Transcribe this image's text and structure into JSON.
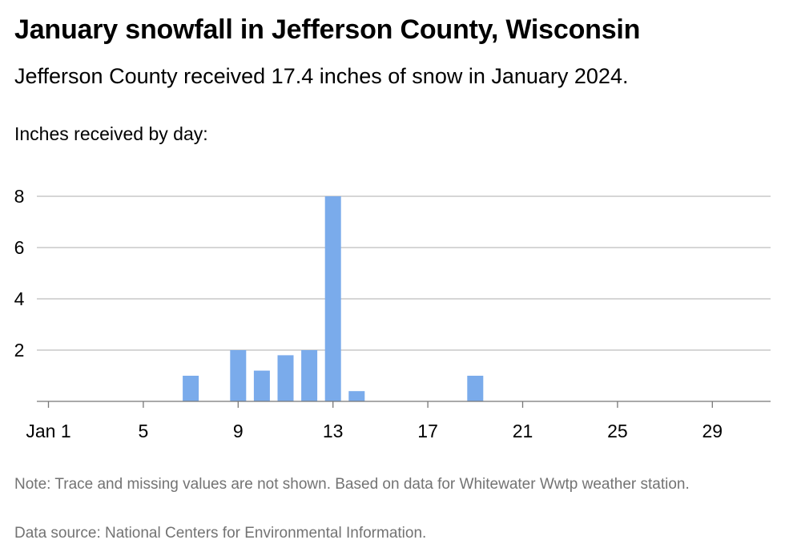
{
  "title": "January snowfall in Jefferson County, Wisconsin",
  "subtitle": "Jefferson County received 17.4 inches of snow in January 2024.",
  "units_label": "Inches received by day:",
  "note": "Note: Trace and missing values are not shown. Based on data for Whitewater Wwtp weather station.",
  "source": "Data source: National Centers for Environmental Information.",
  "colors": {
    "bar": "#7aabeb",
    "grid": "#bdbdbd",
    "axis": "#777777"
  },
  "chart_data": {
    "type": "bar",
    "title": "January snowfall in Jefferson County, Wisconsin",
    "ylabel": "Inches received by day:",
    "x": [
      7,
      9,
      10,
      11,
      12,
      13,
      14,
      19
    ],
    "values": [
      1.0,
      2.0,
      1.2,
      1.8,
      2.0,
      8.0,
      0.4,
      1.0
    ],
    "xlim": [
      1,
      31
    ],
    "ylim": [
      0,
      8
    ],
    "x_ticks": [
      1,
      5,
      9,
      13,
      17,
      21,
      25,
      29
    ],
    "x_tick_labels": [
      "Jan 1",
      "5",
      "9",
      "13",
      "17",
      "21",
      "25",
      "29"
    ],
    "y_ticks": [
      2,
      4,
      6,
      8
    ],
    "y_tick_labels": [
      "2",
      "4",
      "6",
      "8"
    ],
    "grid": true,
    "legend": "none"
  }
}
